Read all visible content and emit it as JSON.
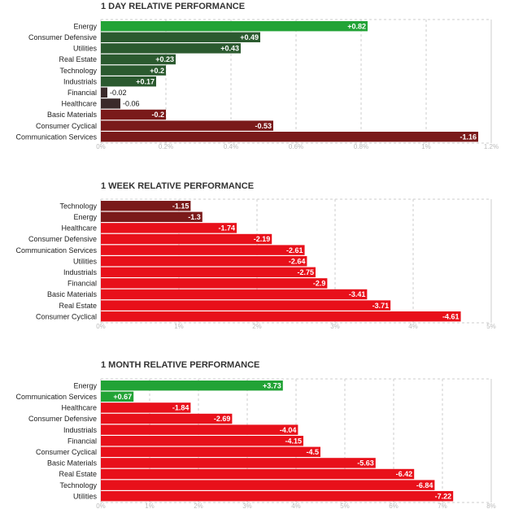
{
  "colors": {
    "strong_positive": "#22a336",
    "positive": "#2b5a2f",
    "near_zero": "#3a2a2a",
    "negative": "#7a1a1a",
    "strong_negative": "#e8101a",
    "grid": "#cccccc",
    "axis_text": "#bbbbbb"
  },
  "chart_data": [
    {
      "type": "bar",
      "orientation": "horizontal",
      "title": "1 DAY RELATIVE PERFORMANCE",
      "categories": [
        "Energy",
        "Consumer Defensive",
        "Utilities",
        "Real Estate",
        "Technology",
        "Industrials",
        "Financial",
        "Healthcare",
        "Basic Materials",
        "Consumer Cyclical",
        "Communication Services"
      ],
      "values": [
        0.82,
        0.49,
        0.43,
        0.23,
        0.2,
        0.17,
        -0.02,
        -0.06,
        -0.2,
        -0.53,
        -1.16
      ],
      "value_labels": [
        "+0.82",
        "+0.49",
        "+0.43",
        "+0.23",
        "+0.2",
        "+0.17",
        "-0.02",
        "-0.06",
        "-0.2",
        "-0.53",
        "-1.16"
      ],
      "ticks": [
        0,
        0.2,
        0.4,
        0.6,
        0.8,
        1,
        1.2
      ],
      "tick_labels": [
        "0%",
        "0.2%",
        "0.4%",
        "0.6%",
        "0.8%",
        "1%",
        "1.2%"
      ],
      "xlim": [
        0,
        1.2
      ],
      "grid": true
    },
    {
      "type": "bar",
      "orientation": "horizontal",
      "title": "1 WEEK RELATIVE PERFORMANCE",
      "categories": [
        "Technology",
        "Energy",
        "Healthcare",
        "Consumer Defensive",
        "Communication Services",
        "Utilities",
        "Industrials",
        "Financial",
        "Basic Materials",
        "Real Estate",
        "Consumer Cyclical"
      ],
      "values": [
        -1.15,
        -1.3,
        -1.74,
        -2.19,
        -2.61,
        -2.64,
        -2.75,
        -2.9,
        -3.41,
        -3.71,
        -4.61
      ],
      "value_labels": [
        "-1.15",
        "-1.3",
        "-1.74",
        "-2.19",
        "-2.61",
        "-2.64",
        "-2.75",
        "-2.9",
        "-3.41",
        "-3.71",
        "-4.61"
      ],
      "ticks": [
        0,
        1,
        2,
        3,
        4,
        5
      ],
      "tick_labels": [
        "0%",
        "1%",
        "2%",
        "3%",
        "4%",
        "5%"
      ],
      "xlim": [
        0,
        5
      ],
      "grid": true
    },
    {
      "type": "bar",
      "orientation": "horizontal",
      "title": "1 MONTH RELATIVE PERFORMANCE",
      "categories": [
        "Energy",
        "Communication Services",
        "Healthcare",
        "Consumer Defensive",
        "Industrials",
        "Financial",
        "Consumer Cyclical",
        "Basic Materials",
        "Real Estate",
        "Technology",
        "Utilities"
      ],
      "values": [
        3.73,
        0.67,
        -1.84,
        -2.69,
        -4.04,
        -4.15,
        -4.5,
        -5.63,
        -6.42,
        -6.84,
        -7.22
      ],
      "value_labels": [
        "+3.73",
        "+0.67",
        "-1.84",
        "-2.69",
        "-4.04",
        "-4.15",
        "-4.5",
        "-5.63",
        "-6.42",
        "-6.84",
        "-7.22"
      ],
      "ticks": [
        0,
        1,
        2,
        3,
        4,
        5,
        6,
        7,
        8
      ],
      "tick_labels": [
        "0%",
        "1%",
        "2%",
        "3%",
        "4%",
        "5%",
        "6%",
        "7%",
        "8%"
      ],
      "xlim": [
        0,
        8
      ],
      "grid": true
    }
  ]
}
